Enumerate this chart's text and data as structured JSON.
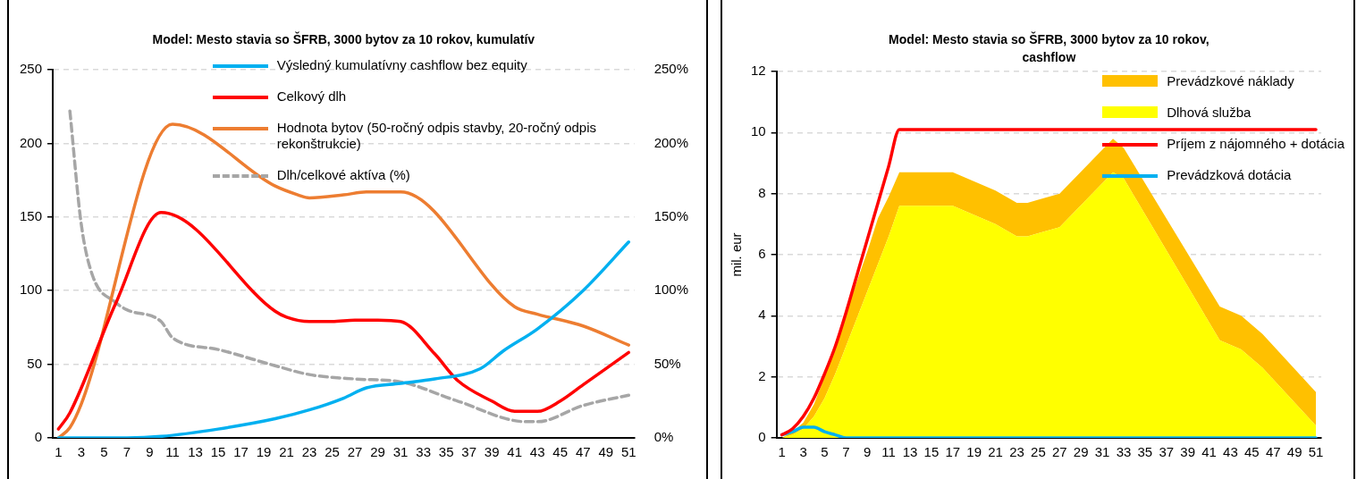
{
  "chart_data": [
    {
      "type": "line",
      "title": "Model: Mesto stavia so ŠFRB, 3000 bytov za 10 rokov, kumulatív",
      "xlim": [
        0.5,
        51.5
      ],
      "xticks": [
        1,
        3,
        5,
        7,
        9,
        11,
        13,
        15,
        17,
        19,
        21,
        23,
        25,
        27,
        29,
        31,
        33,
        35,
        37,
        39,
        41,
        43,
        45,
        47,
        49,
        51
      ],
      "ylim": [
        0,
        250
      ],
      "yticks": [
        0,
        50,
        100,
        150,
        200,
        250
      ],
      "y2lim": [
        0,
        250
      ],
      "y2ticks": [
        {
          "value": 0,
          "label": "0%"
        },
        {
          "value": 50,
          "label": "50%"
        },
        {
          "value": 100,
          "label": "100%"
        },
        {
          "value": 150,
          "label": "150%"
        },
        {
          "value": 200,
          "label": "200%"
        },
        {
          "value": 250,
          "label": "250%"
        }
      ],
      "grid": "y",
      "legend": "top right",
      "marker": "none",
      "series": [
        {
          "name": "Výsledný kumulatívny cashflow bez equity",
          "color": "#00b0f0",
          "x": [
            1,
            7,
            10,
            15,
            20,
            23,
            26,
            28,
            31,
            34,
            38,
            40,
            43,
            47,
            51
          ],
          "values": [
            0,
            0,
            1,
            6,
            13,
            19,
            27,
            34,
            37,
            40,
            47,
            59,
            74,
            100,
            133
          ]
        },
        {
          "name": "Celkový dlh",
          "color": "#ff0000",
          "x": [
            1,
            2,
            6,
            10,
            20,
            21,
            23,
            25,
            27,
            29,
            31,
            34,
            36,
            39,
            41,
            43,
            45,
            47,
            51
          ],
          "values": [
            6,
            17,
            91,
            153,
            86,
            82,
            79,
            79,
            80,
            80,
            79,
            57,
            39,
            25,
            18,
            18,
            25,
            36,
            58
          ]
        },
        {
          "name": "Hodnota bytov (50-ročný odpis stavby, 20-ročný odpis rekonštrukcie)",
          "color": "#ed7d31",
          "x": [
            1,
            2,
            3,
            11,
            20,
            22,
            23,
            26,
            28,
            31,
            41,
            43,
            47,
            51
          ],
          "values": [
            0,
            7,
            23,
            213,
            171,
            165,
            163,
            165,
            167,
            167,
            89,
            84,
            76,
            63
          ]
        },
        {
          "name": "Dlh/celkové aktíva (%)",
          "color": "#a6a6a6",
          "line_style": "dashed",
          "axis": "y2",
          "x": [
            2,
            3,
            4,
            6,
            7,
            10,
            11,
            15,
            20,
            23,
            27,
            31,
            36,
            42,
            43,
            47,
            51
          ],
          "values": [
            222,
            145,
            110,
            92,
            87,
            79,
            68,
            60,
            49,
            43,
            40,
            38,
            25,
            11,
            11,
            22,
            29
          ]
        }
      ]
    },
    {
      "type": "area",
      "title": "Model: Mesto stavia so ŠFRB, 3000 bytov za 10 rokov, cashflow",
      "ylabel": "mil. eur",
      "xlim": [
        0.5,
        51.5
      ],
      "xticks": [
        1,
        3,
        5,
        7,
        9,
        11,
        13,
        15,
        17,
        19,
        21,
        23,
        25,
        27,
        29,
        31,
        33,
        35,
        37,
        39,
        41,
        43,
        45,
        47,
        49,
        51
      ],
      "ylim": [
        0,
        12
      ],
      "yticks": [
        0,
        2,
        4,
        6,
        8,
        10,
        12
      ],
      "grid": "y",
      "legend": "top right",
      "marker": "none",
      "stacked": true,
      "series": [
        {
          "name": "Dlhová služba",
          "color": "#ffff00",
          "x": [
            1,
            2,
            3,
            4,
            5,
            6,
            7,
            8,
            9,
            10,
            11,
            12,
            17,
            19,
            21,
            23,
            24,
            25,
            27,
            32,
            33,
            42,
            44,
            46,
            51
          ],
          "values": [
            0,
            0.1,
            0.3,
            0.7,
            1.3,
            2.1,
            3.0,
            3.9,
            4.8,
            5.7,
            6.6,
            7.6,
            7.6,
            7.3,
            7.0,
            6.6,
            6.6,
            6.7,
            6.9,
            8.7,
            8.5,
            3.2,
            2.9,
            2.3,
            0.4
          ]
        },
        {
          "name": "Prevádzkové náklady",
          "color": "#ffc000",
          "x": [
            1,
            2,
            3,
            4,
            5,
            6,
            7,
            8,
            9,
            10,
            11,
            12,
            17,
            19,
            21,
            23,
            24,
            25,
            27,
            32,
            33,
            42,
            44,
            46,
            51
          ],
          "values": [
            0,
            0.1,
            0.2,
            0.4,
            0.7,
            0.9,
            1.1,
            1.2,
            1.3,
            1.5,
            1.3,
            1.1,
            1.1,
            1.1,
            1.1,
            1.1,
            1.1,
            1.1,
            1.1,
            1.1,
            1.0,
            1.1,
            1.1,
            1.1,
            1.1
          ]
        },
        {
          "name": "Príjem z nájomného + dotácia",
          "color": "#ff0000",
          "type": "line",
          "x": [
            1,
            2,
            3,
            4,
            5,
            6,
            7,
            8,
            9,
            10,
            11,
            12,
            51
          ],
          "values": [
            0.1,
            0.3,
            0.7,
            1.3,
            2.1,
            3.0,
            4.1,
            5.3,
            6.5,
            7.7,
            8.9,
            10.1,
            10.1
          ]
        },
        {
          "name": "Prevádzková dotácia",
          "color": "#00b0f0",
          "type": "line",
          "x": [
            1,
            2,
            3,
            4,
            5,
            6,
            7,
            51
          ],
          "values": [
            0.1,
            0.2,
            0.35,
            0.35,
            0.2,
            0.1,
            0,
            0
          ]
        }
      ]
    }
  ]
}
